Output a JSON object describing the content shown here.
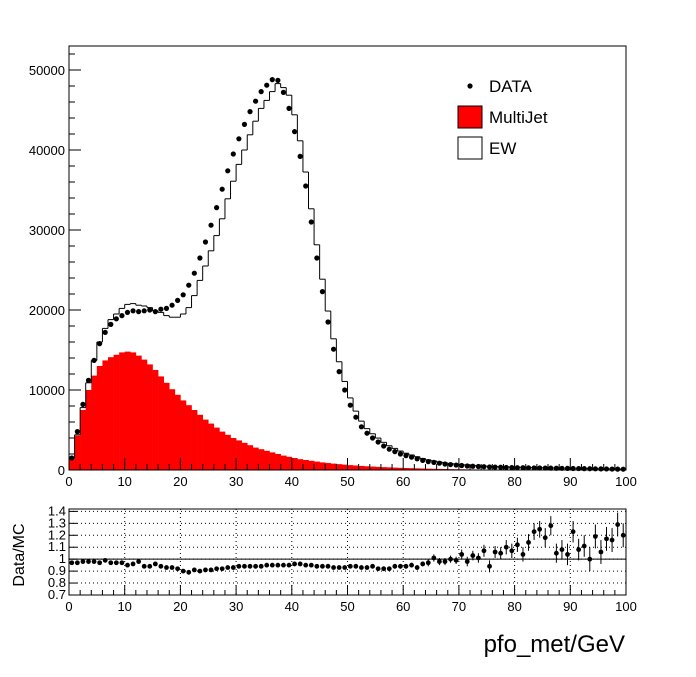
{
  "chart_data": [
    {
      "type": "bar",
      "title": "",
      "xlabel": "",
      "ylabel": "",
      "xlim": [
        0,
        100
      ],
      "ylim": [
        0,
        53000
      ],
      "bin_width": 1,
      "x_ticks": [
        0,
        10,
        20,
        30,
        40,
        50,
        60,
        70,
        80,
        90,
        100
      ],
      "y_ticks": [
        0,
        10000,
        20000,
        30000,
        40000,
        50000
      ],
      "legend": [
        {
          "label": "DATA",
          "style": "marker"
        },
        {
          "label": "MultiJet",
          "style": "fill",
          "color": "#ff0000"
        },
        {
          "label": "EW",
          "style": "outline",
          "color": "#ffffff"
        }
      ],
      "legend_position": "top-right",
      "grid": false,
      "series": [
        {
          "name": "DATA",
          "style": "points",
          "values": [
            1500,
            4800,
            8200,
            11200,
            13700,
            15800,
            17200,
            18200,
            18900,
            19300,
            19700,
            19900,
            19800,
            19900,
            20000,
            19800,
            20100,
            20200,
            20600,
            21200,
            21900,
            23100,
            24600,
            26500,
            28500,
            30600,
            32800,
            35100,
            37400,
            39500,
            41400,
            43200,
            44800,
            46100,
            47300,
            48100,
            48800,
            48700,
            47200,
            45200,
            42300,
            39200,
            35500,
            31000,
            26500,
            22300,
            18500,
            15100,
            12300,
            10000,
            8100,
            6600,
            5400,
            4600,
            4000,
            3500,
            3000,
            2600,
            2300,
            2000,
            1800,
            1600,
            1400,
            1200,
            1050,
            950,
            850,
            750,
            680,
            620,
            560,
            500,
            470,
            440,
            410,
            380,
            360,
            340,
            320,
            300,
            290,
            280,
            270,
            260,
            250,
            240,
            230,
            220,
            210,
            200,
            190,
            180,
            170,
            160,
            150,
            140,
            130,
            120,
            110,
            100
          ]
        },
        {
          "name": "MultiJet",
          "style": "filled-histogram",
          "color": "#ff0000",
          "values": [
            1500,
            4300,
            7500,
            10000,
            11800,
            13000,
            13700,
            14100,
            14400,
            14700,
            14800,
            14700,
            14300,
            13800,
            13200,
            12500,
            11700,
            10900,
            10100,
            9400,
            8700,
            8100,
            7500,
            6900,
            6300,
            5800,
            5300,
            4800,
            4400,
            4000,
            3700,
            3400,
            3100,
            2800,
            2600,
            2400,
            2200,
            2000,
            1800,
            1650,
            1500,
            1350,
            1250,
            1150,
            1050,
            950,
            870,
            800,
            730,
            670,
            610,
            560,
            510,
            470,
            430,
            390,
            360,
            330,
            300,
            270,
            250,
            230,
            210,
            190,
            170,
            155,
            140,
            125,
            110,
            100,
            90,
            80,
            72,
            65,
            58,
            52,
            47,
            42,
            38,
            34,
            30,
            27,
            24,
            22,
            20,
            18,
            16,
            14,
            12,
            11,
            10,
            9,
            8,
            7,
            6,
            5,
            4,
            3,
            2,
            1
          ]
        },
        {
          "name": "EW",
          "style": "stacked-outline-histogram",
          "color": "#ffffff",
          "values": [
            0,
            100,
            300,
            900,
            1900,
            3000,
            4000,
            4700,
            5100,
            5500,
            5900,
            6100,
            6300,
            6700,
            7100,
            7400,
            8000,
            8400,
            9000,
            9700,
            10800,
            12200,
            14300,
            16800,
            19200,
            21600,
            24000,
            26600,
            29500,
            32100,
            34500,
            36600,
            38800,
            40800,
            42600,
            43800,
            45100,
            46300,
            46000,
            45200,
            42900,
            39800,
            36000,
            31500,
            27100,
            22900,
            19000,
            15600,
            12800,
            10400,
            8400,
            6800,
            5600,
            4700,
            4100,
            3600,
            3100,
            2700,
            2400,
            2100,
            1850,
            1650,
            1450,
            1250,
            1100,
            980,
            870,
            770,
            700,
            640,
            580,
            530,
            500,
            470,
            440,
            410,
            390,
            370,
            350,
            330,
            310,
            300,
            290,
            280,
            270,
            260,
            250,
            240,
            230,
            220,
            210,
            200,
            190,
            180,
            170,
            160,
            150,
            140,
            130,
            120
          ]
        }
      ]
    },
    {
      "type": "scatter",
      "title": "",
      "xlabel": "pfo_met/GeV",
      "ylabel": "Data/MC",
      "xlim": [
        0,
        100
      ],
      "ylim": [
        0.7,
        1.42
      ],
      "x_ticks": [
        0,
        10,
        20,
        30,
        40,
        50,
        60,
        70,
        80,
        90,
        100
      ],
      "y_ticks": [
        0.7,
        0.8,
        0.9,
        1,
        1.1,
        1.2,
        1.3,
        1.4
      ],
      "y_tick_labels": [
        "0.7",
        "0.8",
        "0.9",
        "1",
        "1.1",
        "1.2",
        "1.3",
        "1.4"
      ],
      "grid": true,
      "reference_line": 1,
      "series": [
        {
          "name": "",
          "values": [
            0.97,
            0.97,
            0.98,
            0.98,
            0.98,
            0.97,
            0.99,
            0.97,
            0.97,
            0.97,
            0.95,
            0.96,
            0.98,
            0.94,
            0.94,
            0.96,
            0.94,
            0.93,
            0.93,
            0.92,
            0.9,
            0.89,
            0.91,
            0.9,
            0.91,
            0.91,
            0.92,
            0.92,
            0.93,
            0.93,
            0.94,
            0.94,
            0.94,
            0.94,
            0.94,
            0.95,
            0.95,
            0.95,
            0.95,
            0.95,
            0.96,
            0.96,
            0.95,
            0.95,
            0.94,
            0.94,
            0.94,
            0.93,
            0.93,
            0.93,
            0.94,
            0.94,
            0.93,
            0.93,
            0.94,
            0.92,
            0.92,
            0.92,
            0.94,
            0.94,
            0.94,
            0.95,
            0.93,
            0.96,
            0.97,
            1.01,
            0.98,
            0.98,
            1.0,
            0.99,
            1.04,
            0.98,
            1.03,
            1.01,
            1.07,
            0.94,
            1.06,
            1.05,
            1.1,
            1.07,
            1.12,
            1.04,
            1.14,
            1.23,
            1.25,
            1.18,
            1.28,
            1.05,
            1.08,
            1.04,
            1.23,
            1.08,
            1.11,
            1.0,
            1.19,
            1.06,
            1.17,
            1.16,
            1.29,
            1.2
          ],
          "errors": [
            0.01,
            0.01,
            0.01,
            0.01,
            0.01,
            0.01,
            0.01,
            0.01,
            0.01,
            0.01,
            0.01,
            0.01,
            0.01,
            0.01,
            0.01,
            0.01,
            0.01,
            0.01,
            0.01,
            0.01,
            0.01,
            0.01,
            0.01,
            0.01,
            0.01,
            0.01,
            0.01,
            0.01,
            0.01,
            0.01,
            0.01,
            0.01,
            0.01,
            0.01,
            0.01,
            0.01,
            0.01,
            0.01,
            0.01,
            0.01,
            0.01,
            0.01,
            0.01,
            0.01,
            0.01,
            0.01,
            0.01,
            0.01,
            0.01,
            0.01,
            0.01,
            0.01,
            0.01,
            0.01,
            0.01,
            0.01,
            0.02,
            0.02,
            0.02,
            0.02,
            0.02,
            0.02,
            0.02,
            0.02,
            0.03,
            0.03,
            0.03,
            0.03,
            0.03,
            0.03,
            0.04,
            0.04,
            0.04,
            0.04,
            0.05,
            0.05,
            0.05,
            0.05,
            0.06,
            0.06,
            0.06,
            0.06,
            0.07,
            0.07,
            0.07,
            0.08,
            0.08,
            0.08,
            0.08,
            0.09,
            0.09,
            0.09,
            0.09,
            0.1,
            0.1,
            0.1,
            0.1,
            0.1,
            0.1,
            0.1
          ]
        }
      ]
    }
  ]
}
